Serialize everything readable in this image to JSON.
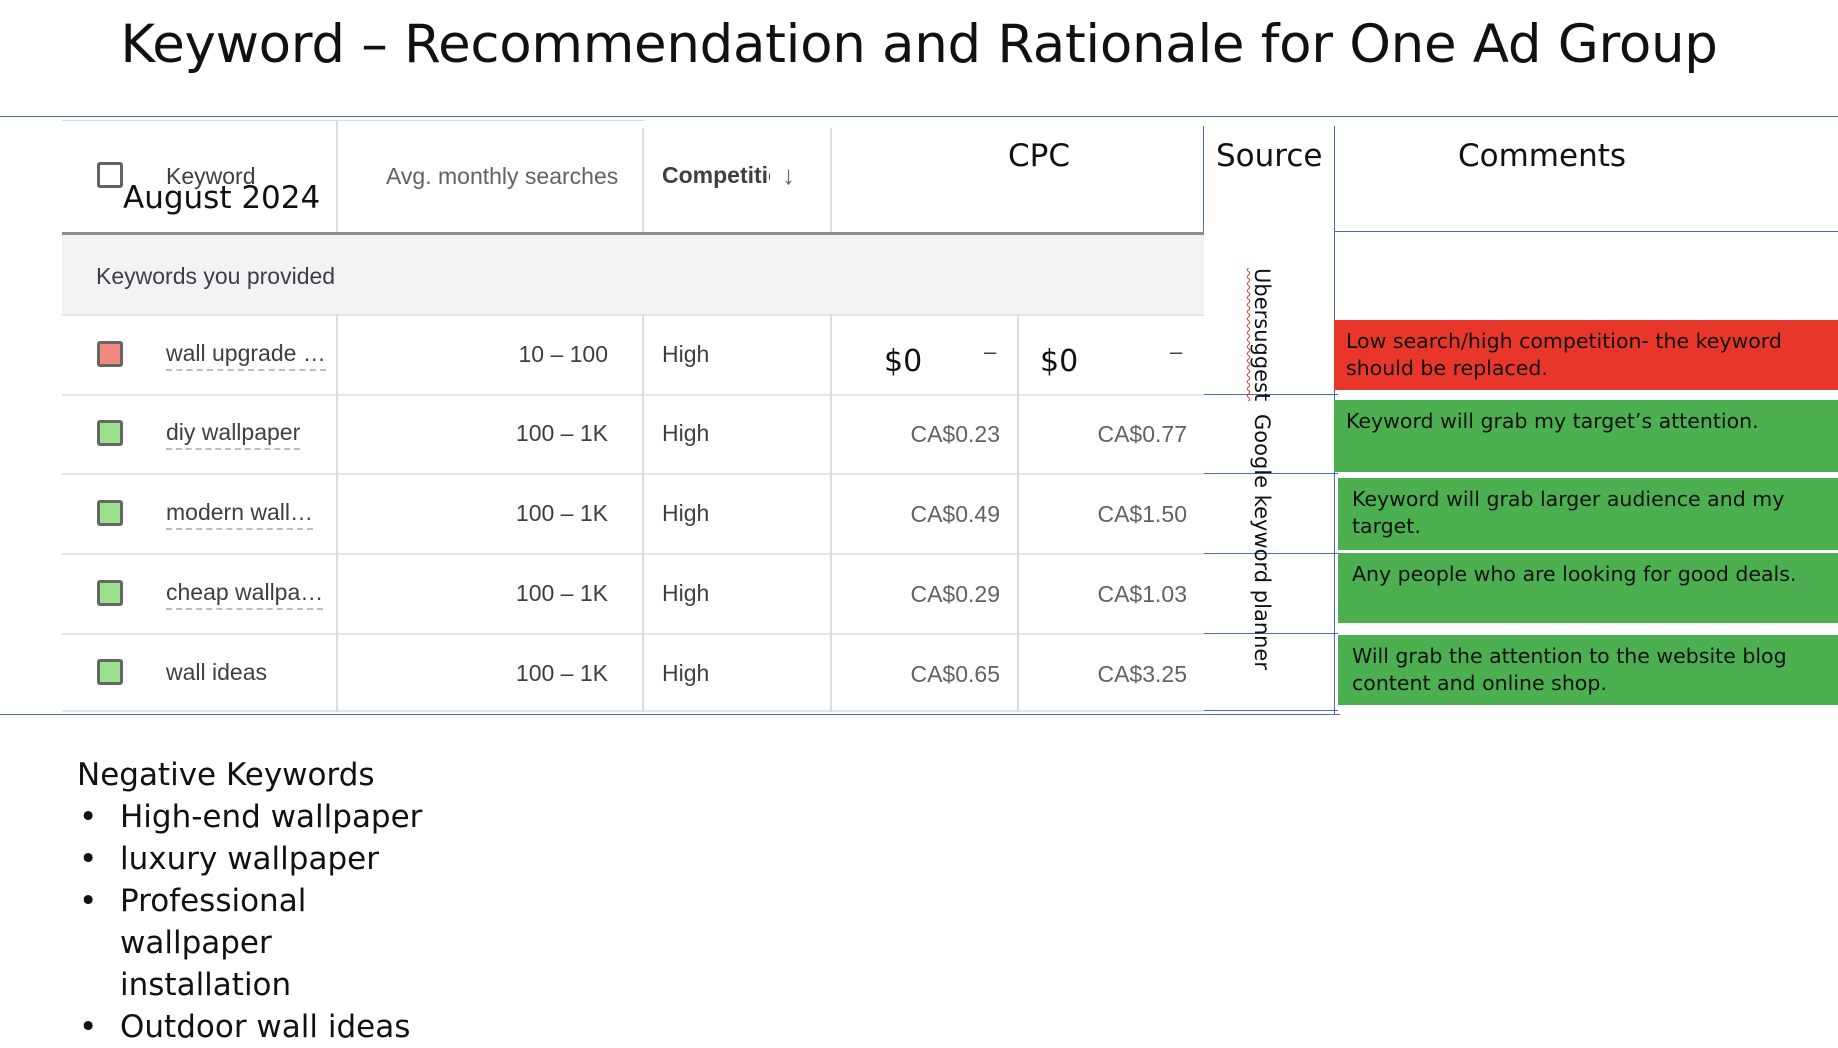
{
  "slide": {
    "title": "Keyword – Recommendation and Rationale for One Ad Group"
  },
  "table": {
    "headers": {
      "keyword": "Keyword",
      "date_overlay": "August 2024",
      "avg_monthly_searches": "Avg. monthly searches",
      "competition": "Competition",
      "cpc": "CPC",
      "source": "Source",
      "comments": "Comments"
    },
    "section_label": "Keywords you provided",
    "rows": [
      {
        "keyword": "wall upgrade …",
        "searches": "10 – 100",
        "competition": "High",
        "cpc_low": "$0",
        "cpc_high": "$0",
        "low_dash": "–",
        "high_dash": "–",
        "checkbox_color": "#f08a80"
      },
      {
        "keyword": "diy wallpaper",
        "searches": "100 – 1K",
        "competition": "High",
        "cpc_low": "CA$0.23",
        "cpc_high": "CA$0.77",
        "checkbox_color": "#9be08c"
      },
      {
        "keyword": "modern wall…",
        "searches": "100 – 1K",
        "competition": "High",
        "cpc_low": "CA$0.49",
        "cpc_high": "CA$1.50",
        "checkbox_color": "#9be08c"
      },
      {
        "keyword": "cheap wallpa…",
        "searches": "100 – 1K",
        "competition": "High",
        "cpc_low": "CA$0.29",
        "cpc_high": "CA$1.03",
        "checkbox_color": "#9be08c"
      },
      {
        "keyword": "wall ideas",
        "searches": "100 – 1K",
        "competition": "High",
        "cpc_low": "CA$0.65",
        "cpc_high": "CA$3.25",
        "checkbox_color": "#9be08c"
      }
    ],
    "sources": {
      "ubersuggest": "Ubersuggest",
      "google": "Google keyword planner"
    },
    "comments": [
      {
        "text": "Low search/high competition- the keyword should be replaced.",
        "color": "#e8372a"
      },
      {
        "text": "Keyword will grab my target’s attention.",
        "color": "#4caf50"
      },
      {
        "text": "Keyword will grab larger audience and my target.",
        "color": "#4caf50"
      },
      {
        "text": "Any people who are looking for good deals.",
        "color": "#4caf50"
      },
      {
        "text": "Will grab the attention to the website blog content and online shop.",
        "color": "#4caf50"
      }
    ]
  },
  "negative_keywords": {
    "heading": "Negative Keywords",
    "items": [
      "High-end wallpaper",
      "luxury wallpaper",
      "Professional wallpaper installation",
      "Outdoor wall ideas"
    ]
  }
}
